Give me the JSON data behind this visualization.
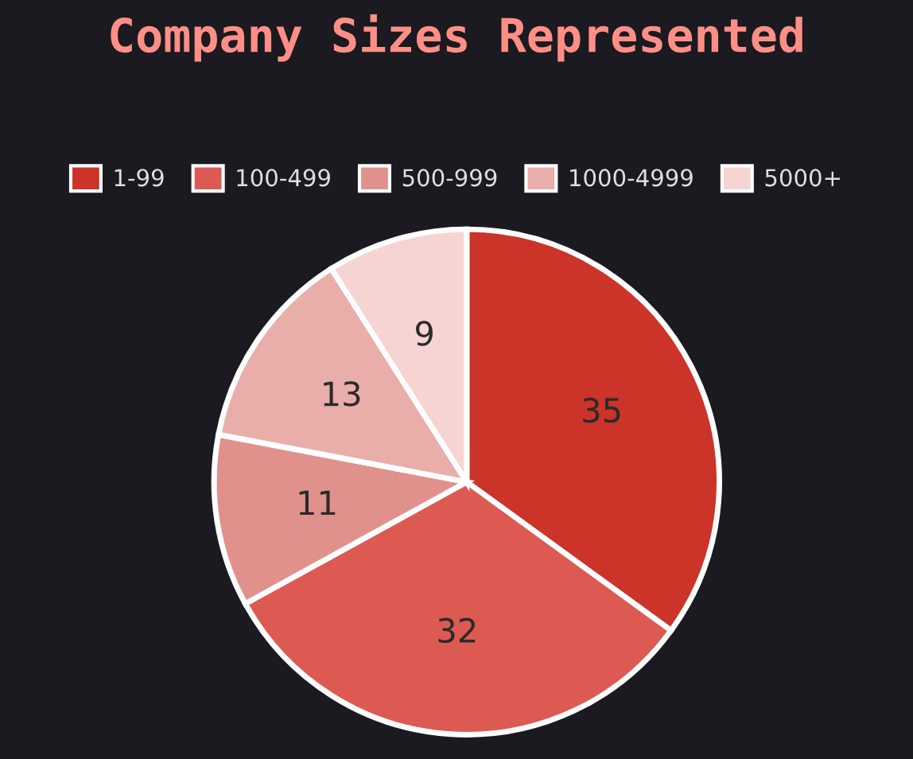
{
  "chart_data": {
    "type": "pie",
    "title": "Company Sizes Represented",
    "categories": [
      "1-99",
      "100-499",
      "500-999",
      "1000-4999",
      "5000+"
    ],
    "values": [
      35,
      32,
      11,
      13,
      9
    ],
    "colors": [
      "#cc3329",
      "#dc5a52",
      "#e0918b",
      "#e9aeaa",
      "#f6d4d2"
    ],
    "data_labels": true,
    "legend": "top"
  }
}
